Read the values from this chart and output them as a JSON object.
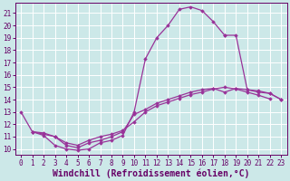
{
  "xlabel": "Windchill (Refroidissement éolien,°C)",
  "background_color": "#cce8e8",
  "grid_color": "#ffffff",
  "line_color": "#993399",
  "xlim": [
    -0.5,
    23.5
  ],
  "ylim": [
    9.5,
    21.8
  ],
  "xticks": [
    0,
    1,
    2,
    3,
    4,
    5,
    6,
    7,
    8,
    9,
    10,
    11,
    12,
    13,
    14,
    15,
    16,
    17,
    18,
    19,
    20,
    21,
    22,
    23
  ],
  "yticks": [
    10,
    11,
    12,
    13,
    14,
    15,
    16,
    17,
    18,
    19,
    20,
    21
  ],
  "font_color": "#660066",
  "tick_fontsize": 5.5,
  "label_fontsize": 7.0,
  "series1_x": [
    0,
    1,
    2,
    3,
    4,
    5,
    6,
    7,
    8,
    9,
    10,
    11,
    12,
    13,
    14,
    15,
    16,
    17,
    18
  ],
  "series1_y": [
    13.0,
    11.4,
    11.1,
    10.3,
    10.0,
    9.9,
    10.0,
    10.5,
    10.7,
    11.1,
    13.0,
    17.3,
    19.0,
    20.0,
    21.3,
    21.5,
    21.2,
    20.3,
    19.2
  ],
  "series2_x": [
    18,
    19,
    20,
    21,
    22,
    23
  ],
  "series2_y": [
    19.2,
    19.2,
    14.8,
    14.6,
    14.5,
    14.0
  ],
  "series3_x": [
    1,
    2,
    3,
    4,
    5,
    6,
    7,
    8,
    9,
    10,
    11,
    12,
    13,
    14,
    15,
    16,
    17,
    18,
    19,
    20,
    21,
    22,
    23
  ],
  "series3_y": [
    11.4,
    11.2,
    11.0,
    10.3,
    10.1,
    10.5,
    10.7,
    11.0,
    11.4,
    12.8,
    13.2,
    13.7,
    14.0,
    14.3,
    14.6,
    14.8,
    14.9,
    14.6,
    14.9,
    14.8,
    14.7,
    14.5,
    14.0
  ],
  "series4_x": [
    1,
    2,
    3,
    4,
    5,
    6,
    7,
    8,
    9,
    10,
    11,
    12,
    13,
    14,
    15,
    16,
    17,
    18,
    19,
    20,
    21,
    22
  ],
  "series4_y": [
    11.4,
    11.3,
    11.0,
    10.5,
    10.3,
    10.7,
    11.0,
    11.2,
    11.5,
    12.2,
    13.0,
    13.5,
    13.8,
    14.1,
    14.4,
    14.6,
    14.85,
    15.0,
    14.85,
    14.6,
    14.35,
    14.05
  ]
}
